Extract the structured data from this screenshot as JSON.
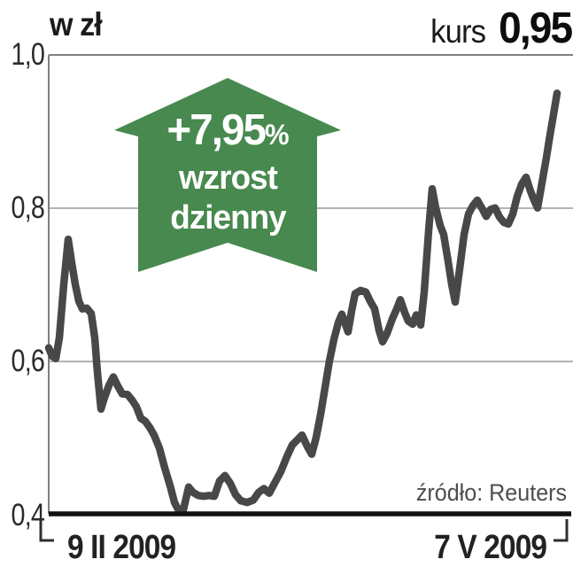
{
  "header": {
    "unit": "w zł",
    "kurs_label": "kurs",
    "kurs_value": "0,95"
  },
  "badge": {
    "change": "+7,95",
    "percent_sign": "%",
    "line1": "wzrost",
    "line2": "dzienny",
    "color": "#47894e",
    "text_color": "#ffffff"
  },
  "y_axis": {
    "labels": [
      "1,0",
      "0,8",
      "0,6",
      "0,4"
    ],
    "values": [
      1.0,
      0.8,
      0.6,
      0.4
    ]
  },
  "x_axis": {
    "start_label": "9 II 2009",
    "end_label": "7 V 2009"
  },
  "source": "źródło: Reuters",
  "colors": {
    "line": "#484848",
    "grid": "#9a9a9a",
    "frame": "#808080",
    "axis": "#111111",
    "bracket": "#2f2f2f"
  },
  "chart_data": {
    "type": "line",
    "title": "kurs 0,95",
    "ylabel": "w zł",
    "ylim": [
      0.4,
      1.0
    ],
    "yticks": [
      0.4,
      0.6,
      0.8,
      1.0
    ],
    "x_range": [
      "9 II 2009",
      "7 V 2009"
    ],
    "grid": true,
    "legend_position": "none",
    "annotation": "+7,95% wzrost dzienny",
    "source": "źródło: Reuters",
    "x_coord": "pixel (55 = 9 II 2009, 645 = 7 V 2009)",
    "series": [
      {
        "name": "kurs (w zł)",
        "points": [
          [
            55,
            0.617
          ],
          [
            59,
            0.606
          ],
          [
            63,
            0.603
          ],
          [
            67,
            0.63
          ],
          [
            72,
            0.7
          ],
          [
            77,
            0.759
          ],
          [
            81,
            0.728
          ],
          [
            85,
            0.7
          ],
          [
            89,
            0.678
          ],
          [
            93,
            0.668
          ],
          [
            98,
            0.669
          ],
          [
            103,
            0.662
          ],
          [
            107,
            0.63
          ],
          [
            110,
            0.585
          ],
          [
            114,
            0.537
          ],
          [
            118,
            0.552
          ],
          [
            123,
            0.568
          ],
          [
            128,
            0.579
          ],
          [
            133,
            0.567
          ],
          [
            138,
            0.557
          ],
          [
            144,
            0.556
          ],
          [
            149,
            0.549
          ],
          [
            154,
            0.54
          ],
          [
            159,
            0.525
          ],
          [
            164,
            0.521
          ],
          [
            169,
            0.513
          ],
          [
            174,
            0.503
          ],
          [
            180,
            0.486
          ],
          [
            186,
            0.46
          ],
          [
            192,
            0.437
          ],
          [
            197,
            0.415
          ],
          [
            201,
            0.406
          ],
          [
            207,
            0.405
          ],
          [
            213,
            0.435
          ],
          [
            218,
            0.428
          ],
          [
            224,
            0.424
          ],
          [
            230,
            0.423
          ],
          [
            236,
            0.424
          ],
          [
            242,
            0.423
          ],
          [
            248,
            0.443
          ],
          [
            254,
            0.45
          ],
          [
            260,
            0.44
          ],
          [
            266,
            0.425
          ],
          [
            272,
            0.417
          ],
          [
            279,
            0.415
          ],
          [
            286,
            0.418
          ],
          [
            292,
            0.428
          ],
          [
            298,
            0.433
          ],
          [
            304,
            0.427
          ],
          [
            310,
            0.44
          ],
          [
            317,
            0.455
          ],
          [
            324,
            0.475
          ],
          [
            330,
            0.49
          ],
          [
            336,
            0.497
          ],
          [
            341,
            0.503
          ],
          [
            347,
            0.488
          ],
          [
            352,
            0.478
          ],
          [
            357,
            0.5
          ],
          [
            362,
            0.53
          ],
          [
            367,
            0.565
          ],
          [
            372,
            0.6
          ],
          [
            377,
            0.628
          ],
          [
            382,
            0.65
          ],
          [
            386,
            0.661
          ],
          [
            390,
            0.648
          ],
          [
            393,
            0.638
          ],
          [
            397,
            0.665
          ],
          [
            401,
            0.688
          ],
          [
            407,
            0.692
          ],
          [
            413,
            0.69
          ],
          [
            418,
            0.678
          ],
          [
            423,
            0.668
          ],
          [
            428,
            0.64
          ],
          [
            432,
            0.625
          ],
          [
            437,
            0.636
          ],
          [
            443,
            0.655
          ],
          [
            448,
            0.668
          ],
          [
            452,
            0.68
          ],
          [
            457,
            0.663
          ],
          [
            461,
            0.652
          ],
          [
            466,
            0.648
          ],
          [
            470,
            0.66
          ],
          [
            475,
            0.647
          ],
          [
            479,
            0.69
          ],
          [
            484,
            0.77
          ],
          [
            488,
            0.825
          ],
          [
            492,
            0.8
          ],
          [
            497,
            0.777
          ],
          [
            501,
            0.765
          ],
          [
            506,
            0.73
          ],
          [
            510,
            0.7
          ],
          [
            514,
            0.677
          ],
          [
            519,
            0.72
          ],
          [
            524,
            0.765
          ],
          [
            529,
            0.792
          ],
          [
            534,
            0.803
          ],
          [
            539,
            0.81
          ],
          [
            544,
            0.8
          ],
          [
            549,
            0.789
          ],
          [
            554,
            0.798
          ],
          [
            559,
            0.8
          ],
          [
            564,
            0.788
          ],
          [
            569,
            0.781
          ],
          [
            574,
            0.779
          ],
          [
            579,
            0.792
          ],
          [
            584,
            0.815
          ],
          [
            589,
            0.831
          ],
          [
            594,
            0.84
          ],
          [
            599,
            0.822
          ],
          [
            603,
            0.81
          ],
          [
            607,
            0.8
          ],
          [
            612,
            0.833
          ],
          [
            617,
            0.866
          ],
          [
            621,
            0.895
          ],
          [
            625,
            0.922
          ],
          [
            629,
            0.95
          ]
        ]
      }
    ]
  }
}
